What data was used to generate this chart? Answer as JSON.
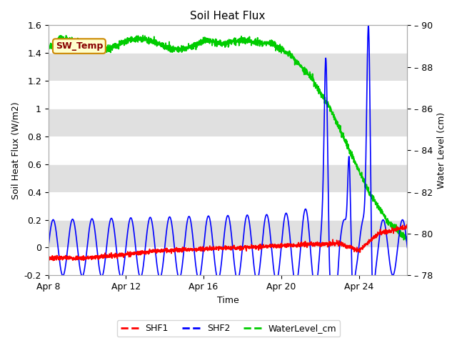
{
  "title": "Soil Heat Flux",
  "xlabel": "Time",
  "ylabel_left": "Soil Heat Flux (W/m2)",
  "ylabel_right": "Water Level (cm)",
  "ylim_left": [
    -0.2,
    1.6
  ],
  "ylim_right": [
    78,
    90
  ],
  "yticks_left": [
    -0.2,
    0.0,
    0.2,
    0.4,
    0.6,
    0.8,
    1.0,
    1.2,
    1.4,
    1.6
  ],
  "yticks_right": [
    78,
    80,
    82,
    84,
    86,
    88,
    90
  ],
  "xtick_labels": [
    "Apr 8",
    "Apr 12",
    "Apr 16",
    "Apr 20",
    "Apr 24"
  ],
  "xtick_positions": [
    0,
    4,
    8,
    12,
    16
  ],
  "color_shf1": "#ff0000",
  "color_shf2": "#0000ff",
  "color_water": "#00cc00",
  "annotation_text": "SW_Temp",
  "annotation_bg": "#ffffcc",
  "annotation_border": "#cc8800",
  "annotation_text_color": "#880000",
  "bg_color": "#ffffff",
  "band_color": "#e0e0e0",
  "legend_labels": [
    "SHF1",
    "SHF2",
    "WaterLevel_cm"
  ],
  "total_days": 18.5,
  "figwidth": 6.4,
  "figheight": 4.8,
  "dpi": 100
}
